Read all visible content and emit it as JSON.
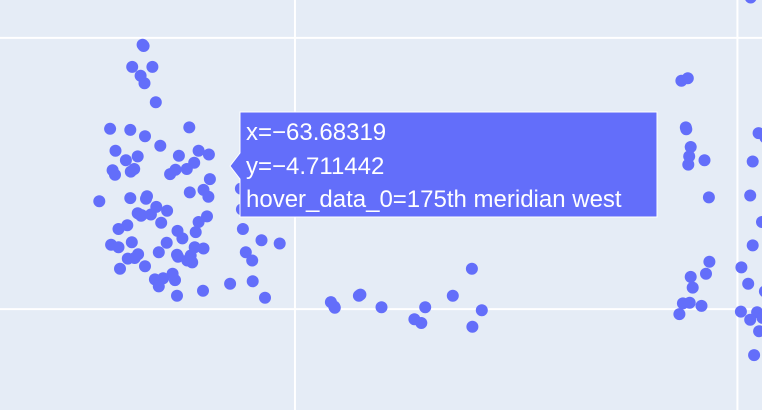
{
  "chart_data": {
    "type": "scatter",
    "xlim": [
      -100,
      55
    ],
    "ylim": [
      -45,
      20
    ],
    "grid": true,
    "gridlines": {
      "x": [
        -40,
        50
      ],
      "y": [
        14,
        -29
      ]
    },
    "color": "#636efa",
    "x": [
      -57.3,
      -57.6,
      -57.9,
      -46.8,
      -50.0,
      -48.7,
      -61.5,
      -59.6,
      -60.5,
      -57.5,
      -59.6,
      -60.2,
      -58.6,
      -53.2,
      -68.3,
      -70.6,
      -70.8,
      -71.0,
      -69.0,
      -73.1,
      -71.4,
      -73.5,
      -67.4,
      -70.5,
      -72.0,
      -77.6,
      -76.5,
      -76.6,
      -74.4,
      -64.3,
      -65.4,
      -63.6,
      -62.0,
      -61.4,
      -58.6,
      -70.3,
      -72.0,
      -71.3,
      -69.3,
      -66.0,
      -63.9,
      -62.9,
      -68.2,
      -70.1,
      -67.2,
      -73.5,
      -71.2,
      -79.8,
      -77.1,
      -72.7,
      -73.4,
      -74.1,
      -73.2,
      -77.4,
      -74.0,
      -75.9,
      -75.9,
      -75.6,
      -71.9,
      -72.6,
      -70.5,
      -64.0,
      -61.2,
      -60.9,
      -66.8,
      -64.4,
      -58.7,
      -68.5,
      -67.7,
      -64.9,
      -67.7,
      -66.1,
      -61.9,
      -63.8,
      -64.0,
      -60.4,
      -50.6,
      -50.8,
      -51.0,
      -48.9,
      -43.1,
      -48.6,
      -46.1,
      -32.0,
      -31.9,
      -32.7,
      -26.7,
      -27.0,
      -22.4,
      -2.0,
      -4.0,
      -7.9,
      -3.9,
      -15.7,
      -13.5,
      -14.3,
      52.7,
      55.0,
      54.4,
      53.4,
      55.6,
      38.2,
      38.9,
      42.7,
      40.5,
      43.6,
      44.3,
      50.7,
      54.0,
      55.1,
      52.6,
      52.2,
      50.8,
      40.9,
      40.3,
      43.3,
      40.2,
      40.5,
      40.0,
      39.5,
      39.6,
      38.6,
      39.9,
      44.2,
      53.1,
      52.6,
      53.1,
      54.3,
      55.7
    ],
    "y": [
      -8.4,
      -11.2,
      -14.3,
      -18.1,
      -20.0,
      -21.3,
      -0.2,
      -3.9,
      -5.8,
      -4.5,
      -15.2,
      -16.8,
      -19.4,
      -25.0,
      3.8,
      6.8,
      12.7,
      12.9,
      9.4,
      9.4,
      8.0,
      -0.6,
      -3.1,
      -1.6,
      -4.8,
      -0.4,
      -3.9,
      -7.7,
      -5.4,
      -6.9,
      -7.6,
      -4.7,
      -6.8,
      -10.5,
      -10.1,
      -11.5,
      -13.8,
      -14.2,
      -14.0,
      -13.4,
      -16.6,
      -17.8,
      -12.8,
      -11.1,
      -15.3,
      -11.4,
      -14.1,
      -11.9,
      -7.0,
      -6.8,
      -7.2,
      -15.7,
      -18.4,
      -18.8,
      -21.0,
      -16.3,
      -19.2,
      -22.6,
      -20.3,
      -20.9,
      -22.2,
      -20.4,
      -20.5,
      -21.6,
      -24.1,
      -24.4,
      -26.1,
      -24.3,
      -25.4,
      -23.4,
      -20.0,
      -18.5,
      -21.3,
      -20.7,
      -26.9,
      -19.2,
      -16.3,
      -13.2,
      -9.9,
      -8.0,
      -18.6,
      -24.6,
      -27.2,
      -28.6,
      -28.8,
      -27.9,
      -26.7,
      -26.9,
      -28.7,
      -29.2,
      -22.6,
      -26.9,
      -31.8,
      -30.6,
      -28.7,
      -31.2,
      20.4,
      -15.2,
      -32.5,
      -36.3,
      -26.2,
      -29.8,
      -28.1,
      -28.5,
      -23.9,
      -23.4,
      -21.5,
      -29.4,
      -29.5,
      -30.4,
      -30.7,
      -25.0,
      -22.4,
      -25.6,
      -28.0,
      -5.4,
      -4.8,
      -3.3,
      -6.1,
      -0.2,
      -0.5,
      7.2,
      7.6,
      -11.3,
      -18.9,
      -11.0,
      -5.6,
      -1.1,
      -1.8
    ],
    "hover": {
      "x": "x=−63.68319",
      "y": "y=−4.711442",
      "data": "hover_data_0=175th meridian west"
    }
  }
}
